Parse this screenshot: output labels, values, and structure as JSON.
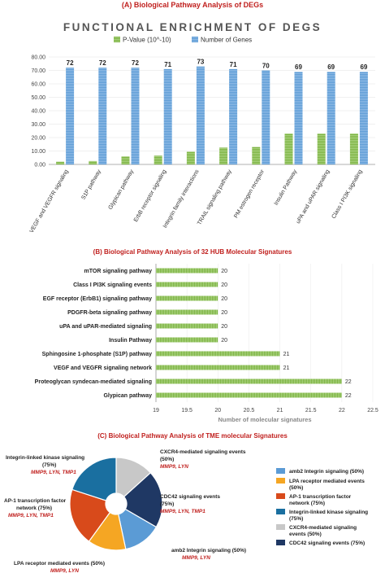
{
  "chart_data": [
    {
      "type": "bar",
      "panel_title": "(A) Biological Pathway Analysis of DEGs",
      "title": "FUNCTIONAL ENRICHMENT OF DEGS",
      "categories": [
        "VEGF and VEGFR signaling",
        "S1P pathway",
        "Glypican pathway",
        "ErbB receptor signaling",
        "Integrin family interactions",
        "TRAIL signaling pathway",
        "PM estrogen receptor",
        "Insulin Pathway",
        "uPA and uPAR signaling",
        "Class I PI3K signaling"
      ],
      "series": [
        {
          "name": "P-Value (10^-10)",
          "color": "#7cb342",
          "values": [
            2,
            2.5,
            6,
            6.5,
            9.5,
            12.5,
            13,
            23,
            23,
            23
          ]
        },
        {
          "name": "Number of Genes",
          "color": "#5b9bd5",
          "values": [
            72,
            72,
            72,
            71,
            73,
            71,
            70,
            69,
            69,
            69
          ]
        }
      ],
      "data_labels": [
        "72",
        "72",
        "72",
        "71",
        "73",
        "71",
        "70",
        "69",
        "69",
        "69"
      ],
      "ylim": [
        0,
        80
      ],
      "yticks": [
        "0.00",
        "10.00",
        "20.00",
        "30.00",
        "40.00",
        "50.00",
        "60.00",
        "70.00",
        "80.00"
      ],
      "legend_position": "top",
      "grid": true
    },
    {
      "type": "bar",
      "orientation": "horizontal",
      "panel_title": "(B) Biological Pathway Analysis of 32 HUB Molecular Signatures",
      "categories": [
        "mTOR signaling pathway",
        "Class I PI3K signaling events",
        "EGF receptor (ErbB1) signaling pathway",
        "PDGFR-beta signaling pathway",
        "uPA and uPAR-mediated signaling",
        "Insulin Pathway",
        "Sphingosine 1-phosphate (S1P) pathway",
        "VEGF and VEGFR signaling network",
        "Proteoglycan syndecan-mediated signaling",
        "Glypican pathway"
      ],
      "values": [
        20,
        20,
        20,
        20,
        20,
        20,
        21,
        21,
        22,
        22
      ],
      "data_labels": [
        "20",
        "20",
        "20",
        "20",
        "20",
        "20",
        "21",
        "21",
        "22",
        "22"
      ],
      "color": "#7cb342",
      "xlim": [
        19,
        22.5
      ],
      "xticks": [
        "19",
        "19.5",
        "20",
        "20.5",
        "21",
        "21.5",
        "22",
        "22.5"
      ],
      "xlabel": "Number of molecular signatures"
    },
    {
      "type": "pie",
      "panel_title": "(C) Biological Pathway Analysis of TME molecular Signatures",
      "slices": [
        {
          "name": "amb2 Integrin signaling (50%)",
          "value": 50,
          "color": "#5b9bd5",
          "label": "amb2 Integrin signaling (50%)",
          "genes": "MMP9, LYN"
        },
        {
          "name": "LPA receptor mediated events (50%)",
          "value": 50,
          "color": "#f5a623",
          "label": "LPA receptor mediated events (50%)",
          "genes": "MMP9, LYN"
        },
        {
          "name": "AP-1 transcription factor network (75%)",
          "value": 75,
          "color": "#d84a1b",
          "label": "AP-1 transcription factor network (75%)",
          "genes": "MMP9, LYN, TMP1"
        },
        {
          "name": "Integrin-linked kinase signaling (75%)",
          "value": 75,
          "color": "#1a6fa0",
          "label": "Integrin-linked kinase signaling (75%)",
          "genes": "MMP9, LYN, TMP1"
        },
        {
          "name": "CXCR4-mediated signaling events (50%)",
          "value": 50,
          "color": "#c8c8c8",
          "label": "CXCR4-mediated signaling events (50%)",
          "genes": "MMP9, LYN"
        },
        {
          "name": "CDC42 signaling events (75%)",
          "value": 75,
          "color": "#1f3864",
          "label": "CDC42 signaling events (75%)",
          "genes": "MMP9, LYN, TMP1"
        }
      ],
      "legend_position": "right"
    }
  ]
}
